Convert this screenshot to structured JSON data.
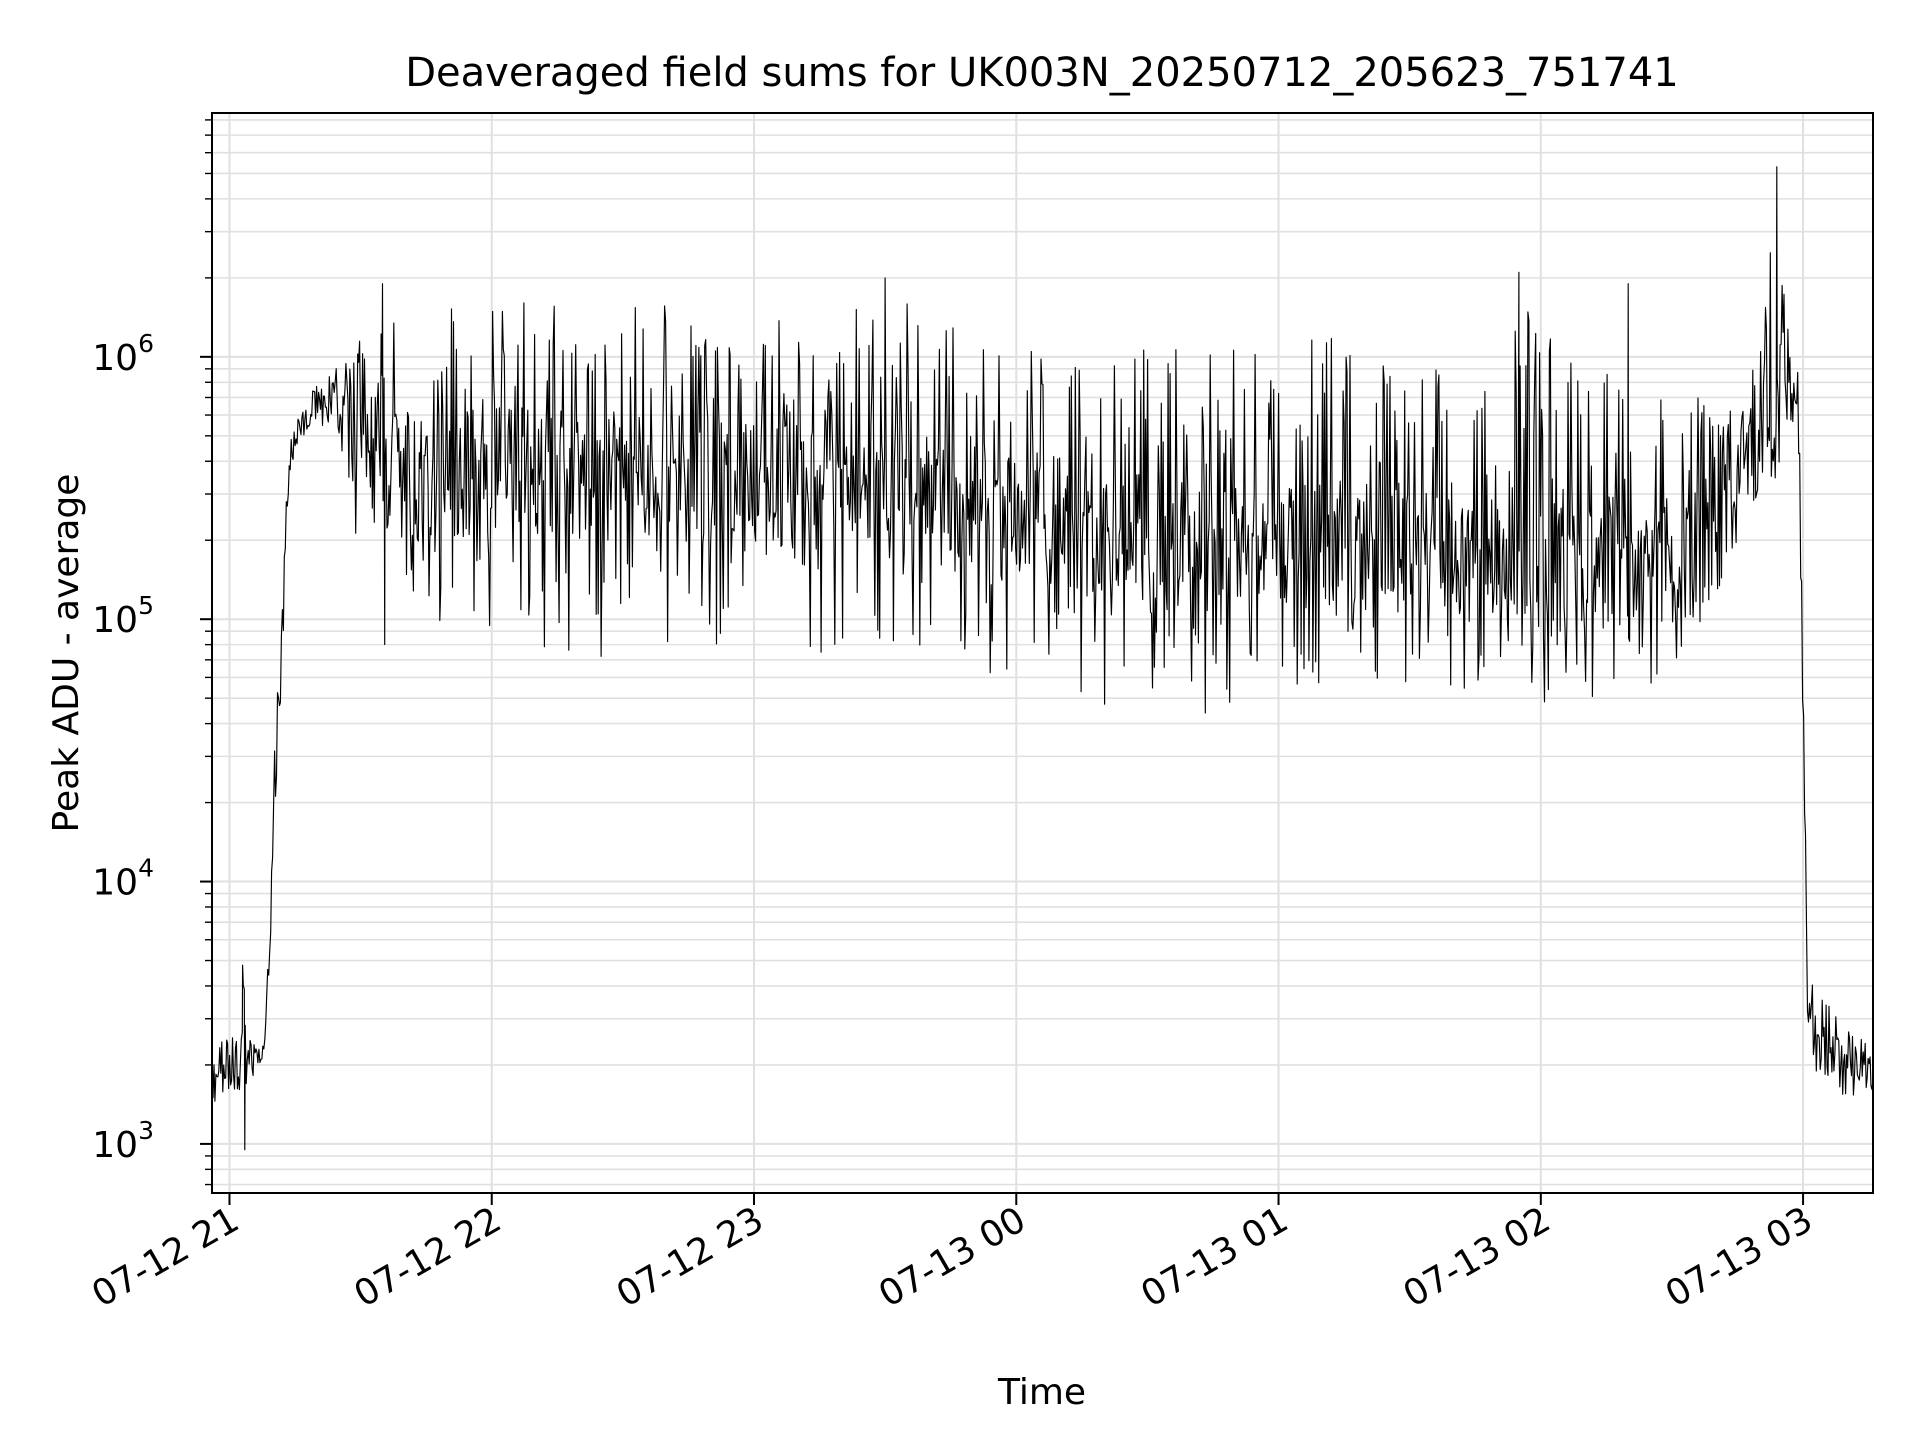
{
  "chart_data": {
    "type": "line",
    "title": "Deaveraged field sums for UK003N_20250712_205623_751741",
    "xlabel": "Time",
    "ylabel": "Peak ADU - average",
    "yscale": "log",
    "ylim": [
      650,
      8500000
    ],
    "xlim": [
      "2025-07-12 20:56",
      "2025-07-13 03:16"
    ],
    "grid": "on",
    "line_color": "#000000",
    "grid_color": "#e0e0e0",
    "x_ticks": [
      {
        "value": "2025-07-12 21:00",
        "label": "07-12 21"
      },
      {
        "value": "2025-07-12 22:00",
        "label": "07-12 22"
      },
      {
        "value": "2025-07-12 23:00",
        "label": "07-12 23"
      },
      {
        "value": "2025-07-13 00:00",
        "label": "07-13 00"
      },
      {
        "value": "2025-07-13 01:00",
        "label": "07-13 01"
      },
      {
        "value": "2025-07-13 02:00",
        "label": "07-13 02"
      },
      {
        "value": "2025-07-13 03:00",
        "label": "07-13 03"
      }
    ],
    "y_ticks": [
      {
        "value": 1000,
        "base": "10",
        "exp": "3"
      },
      {
        "value": 10000,
        "base": "10",
        "exp": "4"
      },
      {
        "value": 100000,
        "base": "10",
        "exp": "5"
      },
      {
        "value": 1000000,
        "base": "10",
        "exp": "6"
      }
    ],
    "series": [
      {
        "x": [
          "2025-07-12 20:56",
          "2025-07-12 21:00",
          "2025-07-12 21:02",
          "2025-07-12 21:03",
          "2025-07-12 21:05",
          "2025-07-12 21:06",
          "2025-07-12 21:08",
          "2025-07-12 21:09",
          "2025-07-12 21:10",
          "2025-07-12 21:12",
          "2025-07-12 21:13",
          "2025-07-12 21:14",
          "2025-07-12 21:16",
          "2025-07-12 21:18",
          "2025-07-12 21:20",
          "2025-07-12 21:22",
          "2025-07-12 21:24",
          "2025-07-12 21:26",
          "2025-07-12 21:30",
          "2025-07-12 21:35",
          "2025-07-12 21:40",
          "2025-07-12 21:45",
          "2025-07-12 21:50",
          "2025-07-12 22:00",
          "2025-07-12 22:10",
          "2025-07-12 22:20",
          "2025-07-12 22:30",
          "2025-07-12 22:40",
          "2025-07-12 22:50",
          "2025-07-12 23:00",
          "2025-07-12 23:10",
          "2025-07-12 23:20",
          "2025-07-12 23:30",
          "2025-07-12 23:40",
          "2025-07-12 23:50",
          "2025-07-13 00:00",
          "2025-07-13 00:10",
          "2025-07-13 00:20",
          "2025-07-13 00:30",
          "2025-07-13 00:40",
          "2025-07-13 00:50",
          "2025-07-13 01:00",
          "2025-07-13 01:10",
          "2025-07-13 01:20",
          "2025-07-13 01:30",
          "2025-07-13 01:40",
          "2025-07-13 01:50",
          "2025-07-13 02:00",
          "2025-07-13 02:10",
          "2025-07-13 02:20",
          "2025-07-13 02:30",
          "2025-07-13 02:35",
          "2025-07-13 02:40",
          "2025-07-13 02:45",
          "2025-07-13 02:50",
          "2025-07-13 02:54",
          "2025-07-13 02:57",
          "2025-07-13 02:59",
          "2025-07-13 03:01",
          "2025-07-13 03:03",
          "2025-07-13 03:05",
          "2025-07-13 03:08",
          "2025-07-13 03:12",
          "2025-07-13 03:16"
        ],
        "low": [
          1400,
          1600,
          1500,
          1500,
          1700,
          1900,
          2000,
          4000,
          12000,
          60000,
          200000,
          380000,
          480000,
          520000,
          550000,
          540000,
          500000,
          420000,
          150000,
          150000,
          120000,
          110000,
          90000,
          80000,
          70000,
          70000,
          70000,
          70000,
          70000,
          70000,
          70000,
          70000,
          70000,
          70000,
          65000,
          55000,
          50000,
          45000,
          40000,
          40000,
          45000,
          50000,
          55000,
          55000,
          55000,
          52000,
          50000,
          48000,
          48000,
          50000,
          60000,
          80000,
          120000,
          200000,
          300000,
          400000,
          500000,
          420000,
          3000,
          1800,
          1600,
          1500,
          1450,
          1500
        ],
        "high": [
          2300,
          2600,
          2800,
          4800,
          2400,
          2400,
          2500,
          6000,
          25000,
          120000,
          300000,
          500000,
          650000,
          700000,
          800000,
          760000,
          1000000,
          950000,
          1300000,
          1900000,
          1300000,
          1500000,
          1600000,
          1600000,
          1650000,
          1600000,
          1600000,
          1600000,
          1550000,
          1600000,
          1500000,
          1550000,
          2000000,
          1400000,
          1300000,
          1100000,
          1200000,
          1050000,
          1250000,
          1200000,
          1100000,
          1150000,
          1200000,
          1100000,
          1100000,
          1000000,
          1100000,
          2100000,
          850000,
          1100000,
          650000,
          900000,
          600000,
          700000,
          1000000,
          5300000,
          1000000,
          900000,
          5000,
          3500,
          4000,
          3000,
          2600,
          2400
        ],
        "center": [
          1800,
          2000,
          2100,
          2200,
          2000,
          2100,
          2200,
          5000,
          18000,
          90000,
          250000,
          450000,
          580000,
          620000,
          680000,
          650000,
          600000,
          560000,
          400000,
          400000,
          350000,
          350000,
          350000,
          360000,
          360000,
          360000,
          360000,
          350000,
          340000,
          340000,
          330000,
          320000,
          320000,
          300000,
          280000,
          250000,
          230000,
          210000,
          200000,
          190000,
          180000,
          180000,
          190000,
          190000,
          190000,
          185000,
          175000,
          160000,
          150000,
          150000,
          160000,
          180000,
          220000,
          280000,
          380000,
          500000,
          650000,
          600000,
          4000,
          2500,
          2300,
          2100,
          1900,
          1800
        ]
      }
    ]
  }
}
